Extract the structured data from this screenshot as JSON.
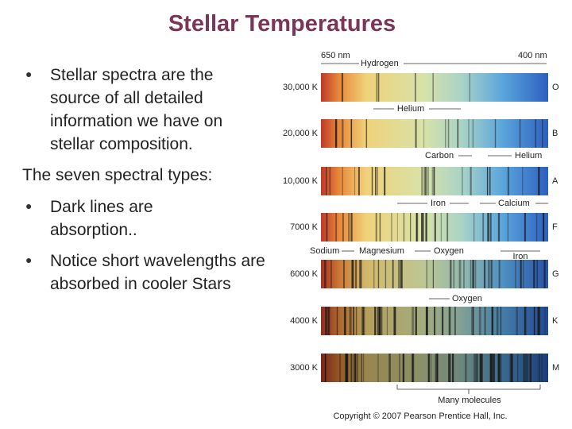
{
  "title": "Stellar Temperatures",
  "bullets": [
    "Stellar spectra are the source of all detailed information we have on stellar composition.",
    "The seven spectral types:",
    "Dark lines are absorption..",
    "Notice short wavelengths are absorbed in cooler Stars"
  ],
  "figure": {
    "top": {
      "left_wavelength": "650 nm",
      "element": "Hydrogen",
      "right_wavelength": "400 nm"
    },
    "rows": [
      {
        "temperature": "30,000 K",
        "class": "O"
      },
      {
        "temperature": "20,000 K",
        "class": "B"
      },
      {
        "temperature": "10,000 K",
        "class": "A"
      },
      {
        "temperature": "7000 K",
        "class": "F"
      },
      {
        "temperature": "6000 K",
        "class": "G"
      },
      {
        "temperature": "4000 K",
        "class": "K"
      },
      {
        "temperature": "3000 K",
        "class": "M"
      }
    ],
    "annotations": [
      "Helium",
      "Carbon",
      "Helium",
      "Iron",
      "Calcium",
      "Sodium",
      "Magnesium",
      "Oxygen",
      "Iron",
      "Oxygen",
      "Many molecules"
    ],
    "copyright": "Copyright © 2007 Pearson Prentice Hall, Inc."
  }
}
